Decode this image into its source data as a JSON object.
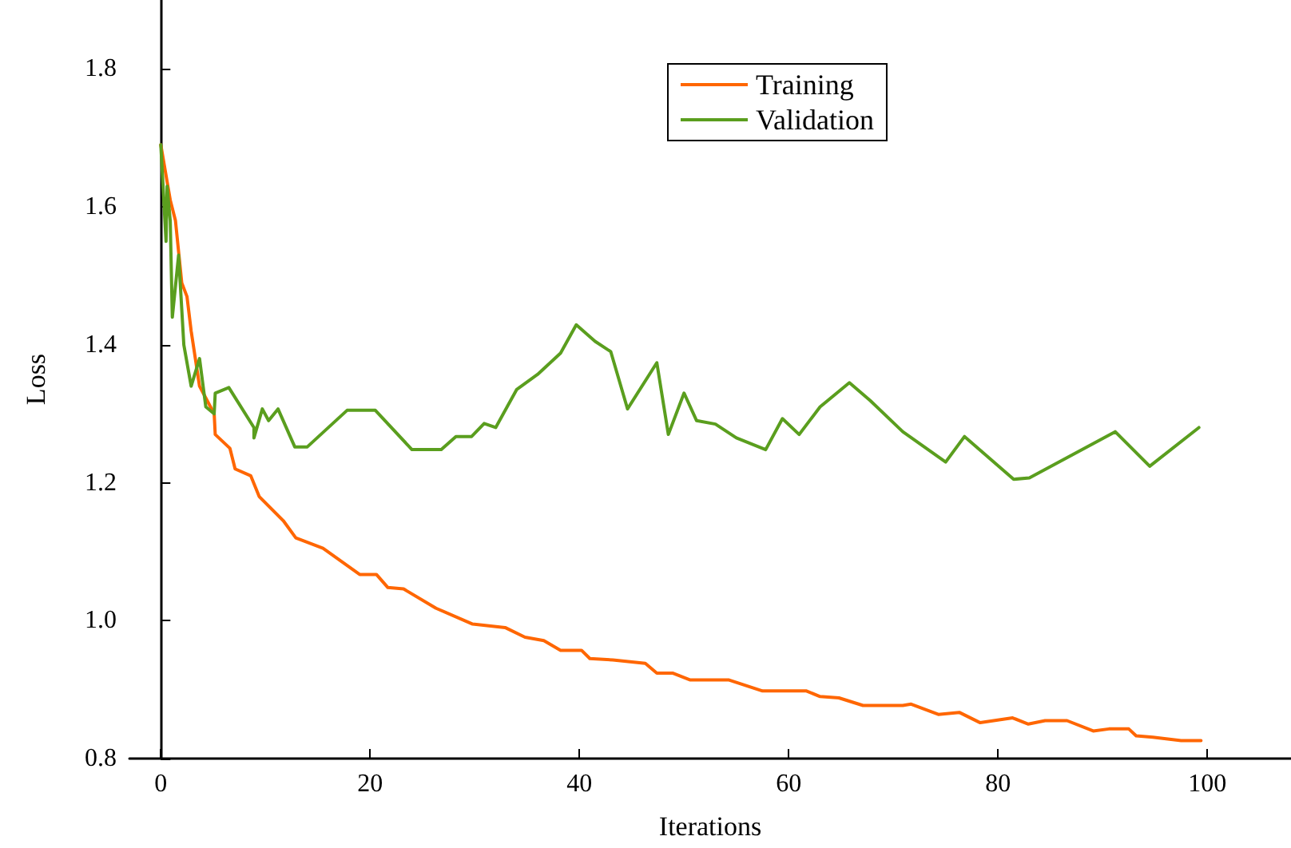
{
  "chart_data": {
    "type": "line",
    "xlabel": "Iterations",
    "ylabel": "Loss",
    "xlim": [
      -3,
      108
    ],
    "xticks": [
      0,
      20,
      40,
      60,
      80,
      100
    ],
    "ylim": [
      0.8,
      1.9
    ],
    "yticks": [
      0.8,
      {
        "value": 1,
        "label": "1.0"
      },
      1.2,
      1.4,
      1.6,
      1.8
    ],
    "grid": false,
    "legend": "top",
    "marker": "none",
    "line_style": "solid",
    "series": [
      {
        "name": "Training",
        "color": "#ff6600",
        "x": [
          0,
          0.9,
          1.4,
          2,
          2.5,
          2.9,
          3.7,
          5.1,
          5.2,
          6.6,
          7.1,
          8.6,
          9.4,
          11.7,
          12.9,
          15.5,
          19,
          20.6,
          21.7,
          23.2,
          26.3,
          29.8,
          32.9,
          34.8,
          36.6,
          38.2,
          40.2,
          41,
          43.2,
          46.3,
          47.4,
          48.9,
          50.6,
          54.3,
          57.5,
          61.7,
          63,
          64.8,
          67.1,
          70.9,
          71.7,
          74.3,
          76.3,
          78.3,
          81.4,
          82.9,
          84.5,
          86.6,
          89.1,
          90.6,
          92.5,
          93.2,
          94.8,
          97.5,
          99.4
        ],
        "values": [
          1.69,
          1.61,
          1.58,
          1.49,
          1.47,
          1.42,
          1.34,
          1.3,
          1.27,
          1.25,
          1.22,
          1.21,
          1.18,
          1.145,
          1.12,
          1.105,
          1.067,
          1.067,
          1.048,
          1.046,
          1.018,
          0.995,
          0.99,
          0.976,
          0.971,
          0.957,
          0.957,
          0.945,
          0.943,
          0.938,
          0.924,
          0.924,
          0.914,
          0.914,
          0.898,
          0.898,
          0.89,
          0.888,
          0.877,
          0.877,
          0.879,
          0.864,
          0.867,
          0.852,
          0.859,
          0.85,
          0.855,
          0.855,
          0.84,
          0.843,
          0.843,
          0.833,
          0.831,
          0.826,
          0.826
        ]
      },
      {
        "name": "Validation",
        "color": "#5a9e1e",
        "x": [
          0,
          0.5,
          0.6,
          0.9,
          1.1,
          1.7,
          2.2,
          2.9,
          3.7,
          4.3,
          5.1,
          5.2,
          6.5,
          8.9,
          8.9,
          9.7,
          10.3,
          11.2,
          12.8,
          14,
          17.8,
          20.5,
          24,
          26.8,
          28.2,
          29.7,
          30.9,
          32,
          34,
          36,
          38.2,
          39.7,
          41.5,
          43,
          44.6,
          47.4,
          48.5,
          50,
          51.2,
          53,
          55,
          57.8,
          59.4,
          61,
          63,
          65.8,
          67.8,
          70.9,
          75,
          76.8,
          81.5,
          83,
          91.2,
          94.5,
          99.2
        ],
        "values": [
          1.69,
          1.55,
          1.63,
          1.58,
          1.44,
          1.53,
          1.4,
          1.34,
          1.38,
          1.31,
          1.3,
          1.33,
          1.338,
          1.28,
          1.265,
          1.307,
          1.29,
          1.307,
          1.252,
          1.252,
          1.305,
          1.305,
          1.248,
          1.248,
          1.267,
          1.267,
          1.286,
          1.28,
          1.335,
          1.357,
          1.388,
          1.429,
          1.405,
          1.39,
          1.307,
          1.374,
          1.27,
          1.33,
          1.29,
          1.285,
          1.265,
          1.248,
          1.293,
          1.27,
          1.31,
          1.345,
          1.319,
          1.274,
          1.23,
          1.267,
          1.205,
          1.207,
          1.274,
          1.224,
          1.28
        ]
      }
    ]
  }
}
